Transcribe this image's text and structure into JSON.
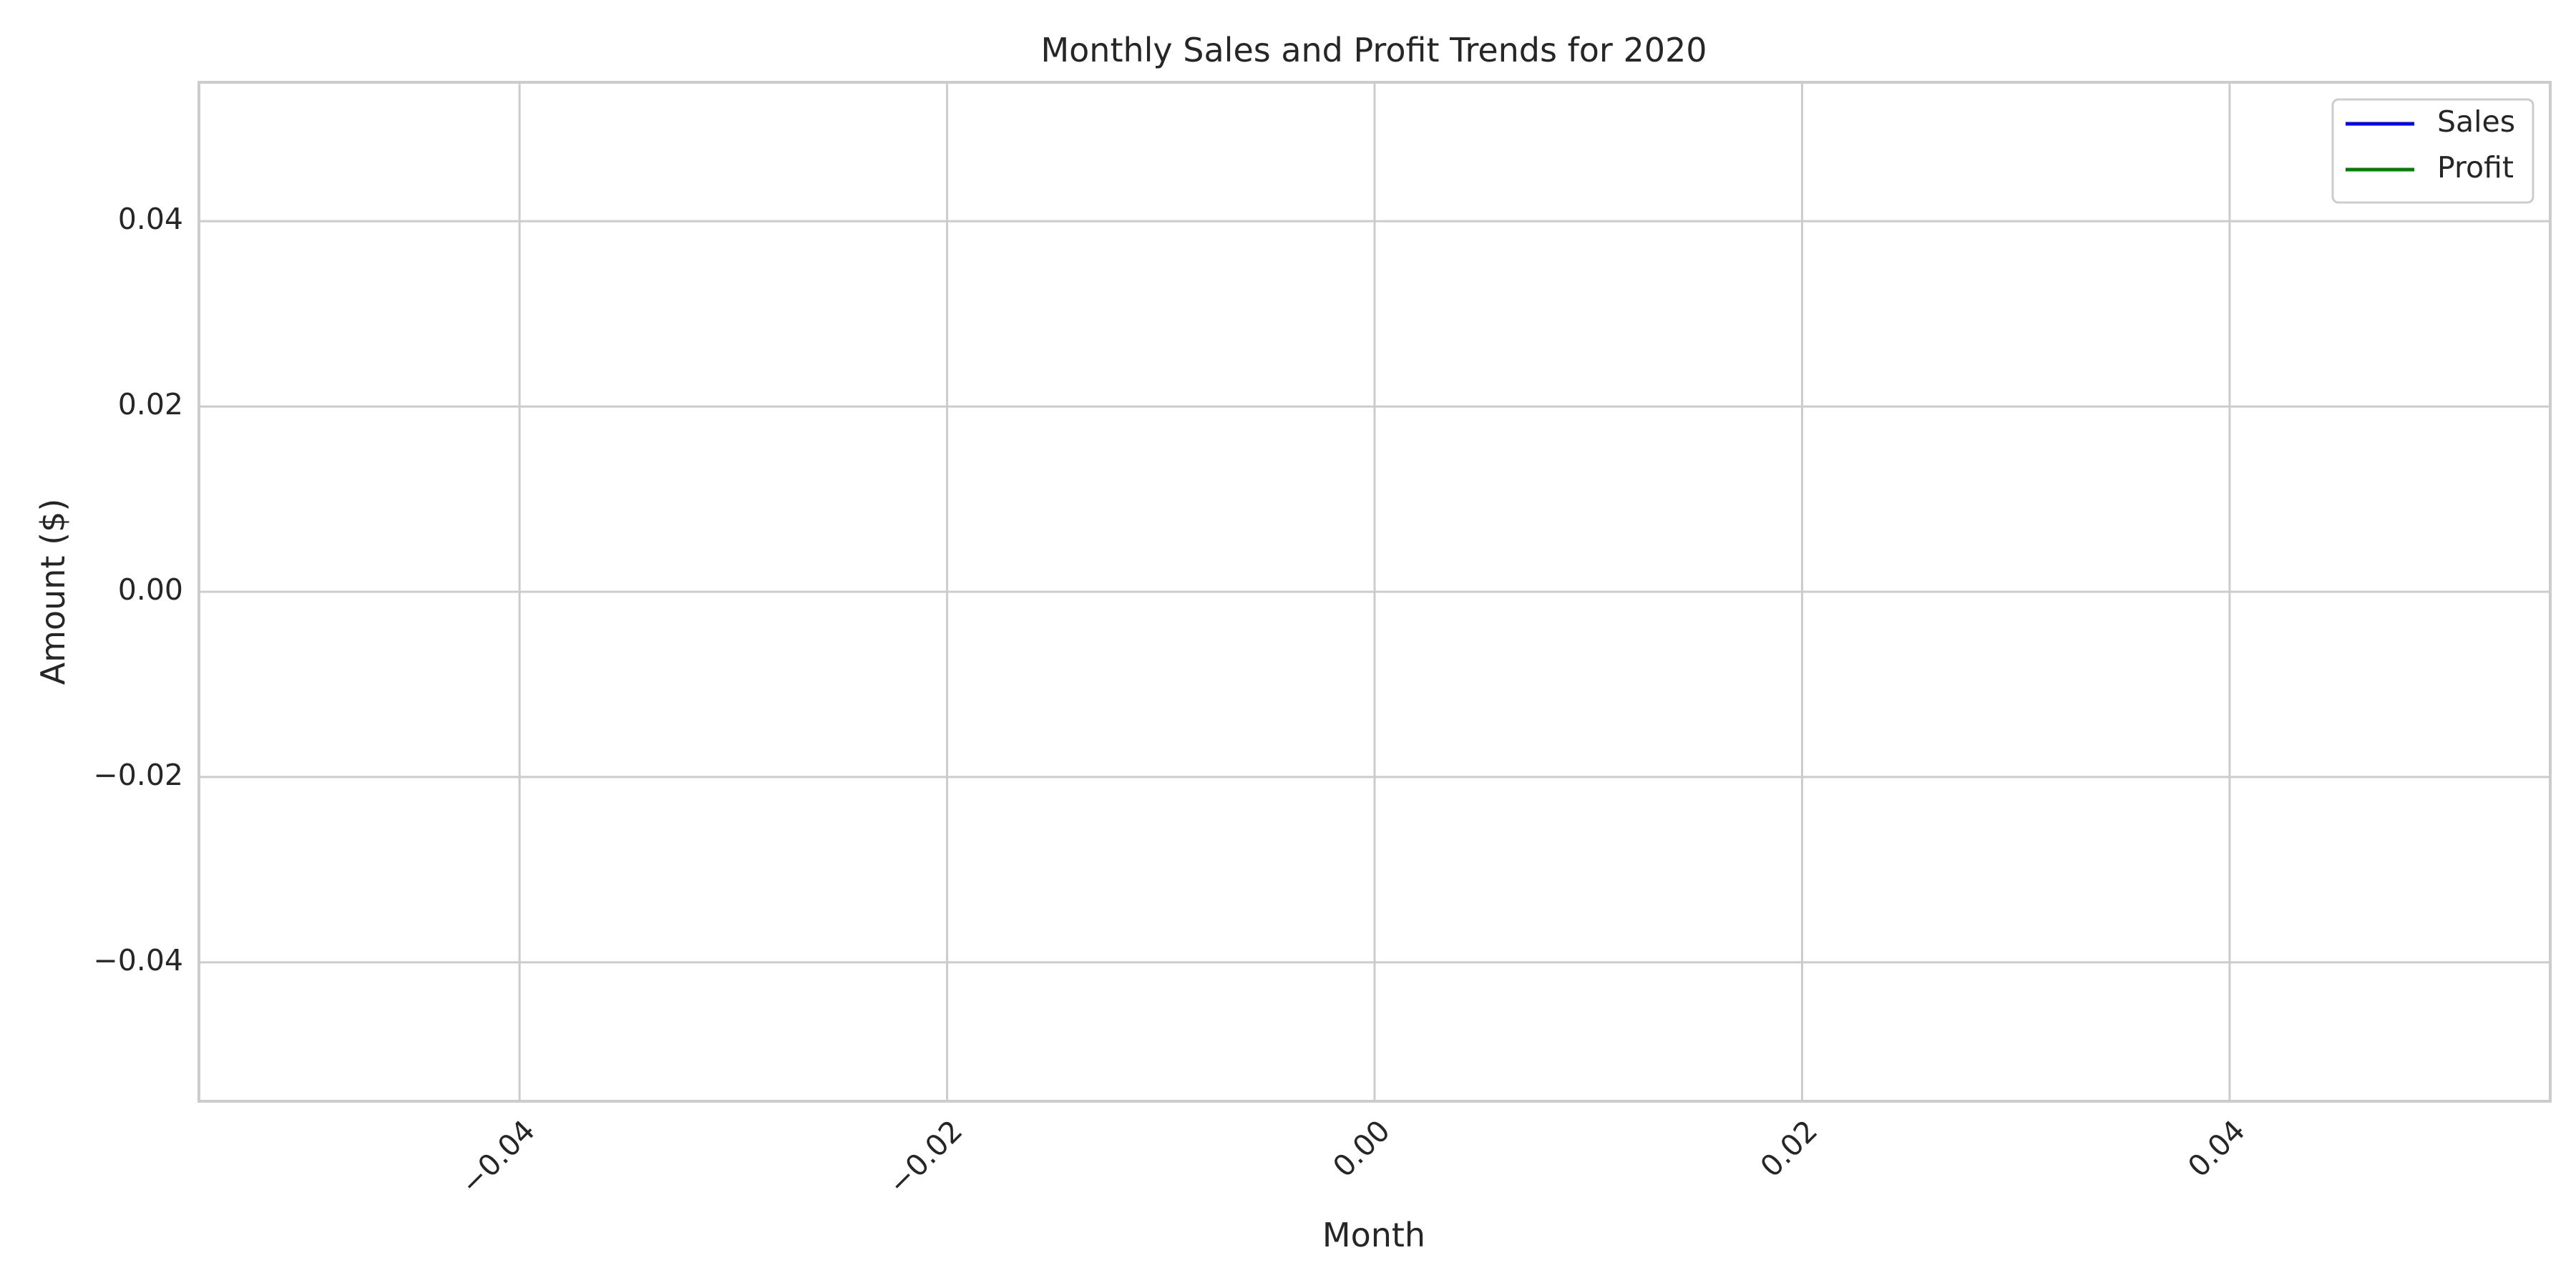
{
  "chart_data": {
    "type": "line",
    "title": "Monthly Sales and Profit Trends for 2020",
    "xlabel": "Month",
    "ylabel": "Amount ($)",
    "xlim": [
      -0.055,
      0.055
    ],
    "ylim": [
      -0.055,
      0.055
    ],
    "xticks": [
      -0.04,
      -0.02,
      0.0,
      0.02,
      0.04
    ],
    "yticks": [
      -0.04,
      -0.02,
      0.0,
      0.02,
      0.04
    ],
    "xtick_labels": [
      "−0.04",
      "−0.02",
      "0.00",
      "0.02",
      "0.04"
    ],
    "ytick_labels": [
      "−0.04",
      "−0.02",
      "0.00",
      "0.02",
      "0.04"
    ],
    "xtick_rotation": 45,
    "grid": true,
    "legend_position": "top-right",
    "series": [
      {
        "name": "Sales",
        "color": "#0000ff",
        "x": [],
        "y": []
      },
      {
        "name": "Profit",
        "color": "#008000",
        "x": [],
        "y": []
      }
    ]
  }
}
